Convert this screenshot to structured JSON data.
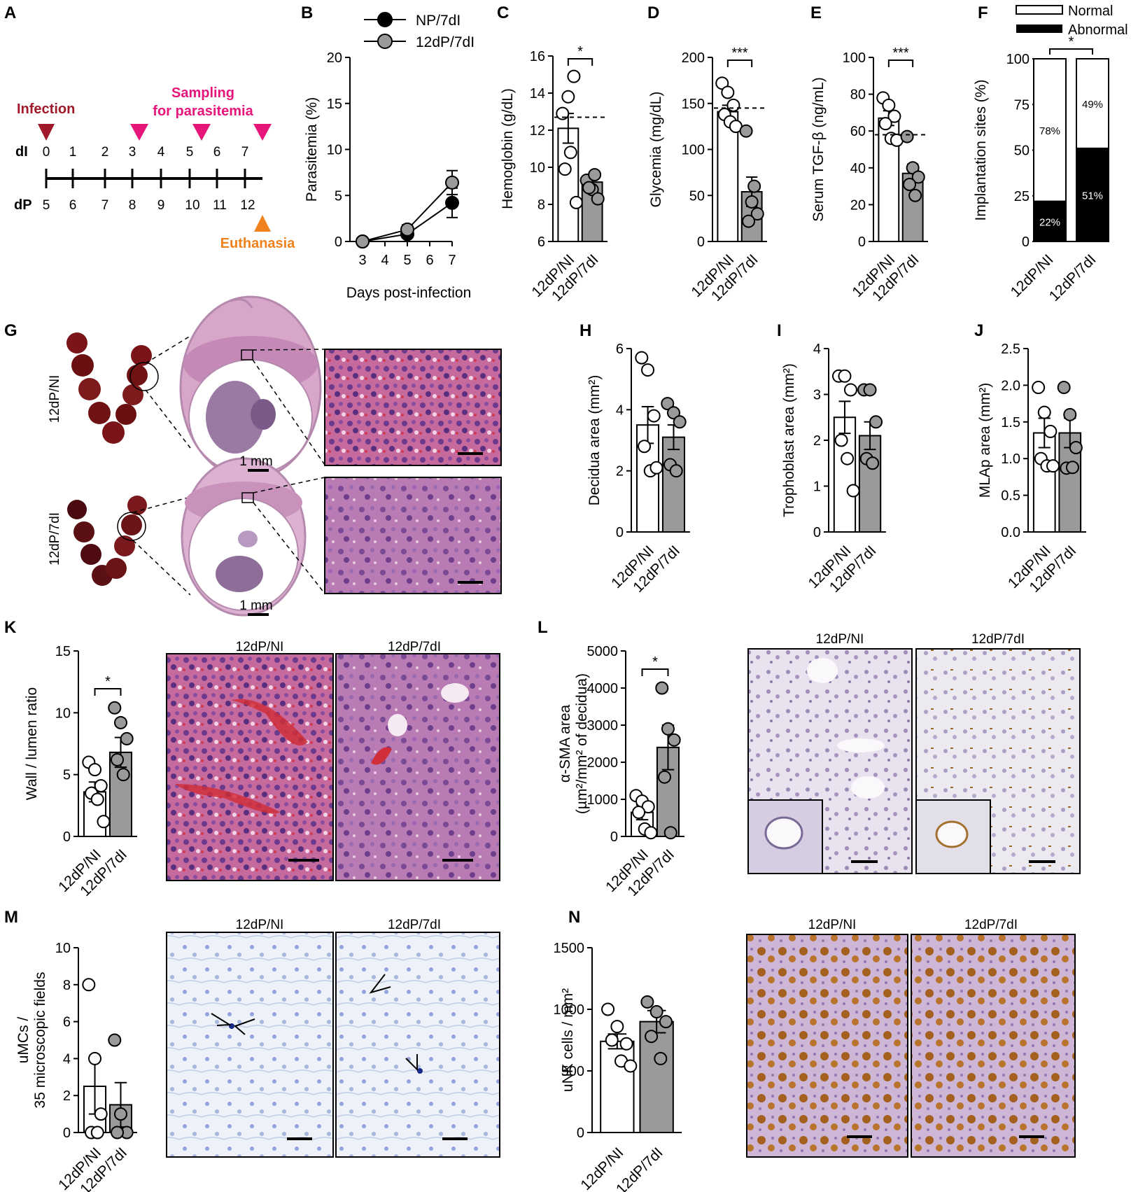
{
  "panel_labels": {
    "A": "A",
    "B": "B",
    "C": "C",
    "D": "D",
    "E": "E",
    "F": "F",
    "G": "G",
    "H": "H",
    "I": "I",
    "J": "J",
    "K": "K",
    "L": "L",
    "M": "M",
    "N": "N"
  },
  "colors": {
    "np": "#000000",
    "infected": "#9a9a9a",
    "bar_open": "#ffffff",
    "bar_gray": "#9a9a9a",
    "timeline_red": "#a0192a",
    "timeline_pink": "#e5157a",
    "timeline_orange": "#f0821e"
  },
  "groups": [
    "12dP/NI",
    "12dP/7dI"
  ],
  "timeline": {
    "infection": "Infection",
    "sampling_l1": "Sampling",
    "sampling_l2": "for parasitemia",
    "euthanasia": "Euthanasia",
    "row_di": "dI",
    "row_dp": "dP",
    "di_ticks": [
      "0",
      "1",
      "2",
      "3",
      "4",
      "5",
      "6",
      "7"
    ],
    "dp_ticks": [
      "5",
      "6",
      "7",
      "8",
      "9",
      "10",
      "11",
      "12"
    ]
  },
  "legend_f": {
    "normal": "Normal",
    "abnormal": "Abnormal"
  },
  "histology": {
    "scalebar_label": "1 mm",
    "col_ni": "12dP/NI",
    "col_7di": "12dP/7dI",
    "row_ni": "12dP/NI",
    "row_7di": "12dP/7dI"
  },
  "chart_data": [
    {
      "id": "B",
      "type": "line",
      "xlabel": "Days post-infection",
      "ylabel": "Parasitemia (%)",
      "x": [
        3,
        5,
        7
      ],
      "xticks": [
        3,
        4,
        5,
        6,
        7
      ],
      "ylim": [
        0,
        20
      ],
      "yticks": [
        0,
        5,
        10,
        15,
        20
      ],
      "series": [
        {
          "name": "NP/7dI",
          "values": [
            0,
            0.8,
            4.2
          ],
          "err": [
            0.2,
            0.4,
            1.6
          ]
        },
        {
          "name": "12dP/7dI",
          "values": [
            0,
            1.3,
            6.4
          ],
          "err": [
            0.2,
            0.5,
            1.3
          ]
        }
      ],
      "legend": "top-left"
    },
    {
      "id": "C",
      "type": "bar",
      "ylabel": "Hemoglobin (g/dL)",
      "ylim": [
        6,
        16
      ],
      "yticks": [
        6,
        8,
        10,
        12,
        14,
        16
      ],
      "categories": [
        "12dP/NI",
        "12dP/7dI"
      ],
      "values": [
        12.1,
        9.2
      ],
      "err": [
        0.8,
        0.4
      ],
      "reference": 12.7,
      "significance": "*",
      "points": [
        [
          12.9,
          13.8,
          14.9,
          9.9,
          10.8,
          8.1
        ],
        [
          9.3,
          8.8,
          8.3,
          8.9,
          9.6
        ]
      ]
    },
    {
      "id": "D",
      "type": "bar",
      "ylabel": "Glycemia (mg/dL)",
      "ylim": [
        0,
        200
      ],
      "yticks": [
        0,
        50,
        100,
        150,
        200
      ],
      "categories": [
        "12dP/NI",
        "12dP/7dI"
      ],
      "values": [
        141,
        54
      ],
      "err": [
        7,
        16
      ],
      "reference": 145,
      "significance": "***",
      "points": [
        [
          172,
          162,
          148,
          138,
          130,
          125
        ],
        [
          120,
          43,
          30,
          22,
          60
        ]
      ]
    },
    {
      "id": "E",
      "type": "bar",
      "ylabel": "Serum TGF-β (ng/mL)",
      "ylim": [
        0,
        100
      ],
      "yticks": [
        0,
        20,
        40,
        60,
        80,
        100
      ],
      "categories": [
        "12dP/NI",
        "12dP/7dI"
      ],
      "values": [
        67,
        37
      ],
      "err": [
        4,
        5
      ],
      "reference": 58,
      "significance": "***",
      "points": [
        [
          78,
          74,
          68,
          64,
          56,
          55
        ],
        [
          57,
          40,
          35,
          31,
          25
        ]
      ]
    },
    {
      "id": "F",
      "type": "bar",
      "stacked": true,
      "ylabel": "Implantation sites (%)",
      "ylim": [
        0,
        100
      ],
      "yticks": [
        0,
        25,
        50,
        75,
        100
      ],
      "categories": [
        "12dP/NI",
        "12dP/7dI"
      ],
      "series": [
        {
          "name": "Abnormal",
          "values": [
            22,
            51
          ],
          "labels": [
            "22%",
            "51%"
          ]
        },
        {
          "name": "Normal",
          "values": [
            78,
            49
          ],
          "labels": [
            "78%",
            "49%"
          ]
        }
      ],
      "significance": "*"
    },
    {
      "id": "H",
      "type": "bar",
      "ylabel": "Decidua area (mm²)",
      "ylim": [
        0,
        6
      ],
      "yticks": [
        0,
        2,
        4,
        6
      ],
      "categories": [
        "12dP/NI",
        "12dP/7dI"
      ],
      "values": [
        3.5,
        3.1
      ],
      "err": [
        0.6,
        0.4
      ],
      "points": [
        [
          5.7,
          5.3,
          3.8,
          2.8,
          2.0,
          2.1
        ],
        [
          4.2,
          3.9,
          3.6,
          2.2,
          2.0
        ]
      ]
    },
    {
      "id": "I",
      "type": "bar",
      "ylabel": "Trophoblast area (mm²)",
      "ylim": [
        0,
        4
      ],
      "yticks": [
        0,
        1,
        2,
        3,
        4
      ],
      "categories": [
        "12dP/NI",
        "12dP/7dI"
      ],
      "values": [
        2.5,
        2.1
      ],
      "err": [
        0.35,
        0.3
      ],
      "points": [
        [
          3.4,
          3.4,
          3.1,
          2.0,
          1.6,
          0.9
        ],
        [
          3.1,
          3.1,
          2.4,
          1.6,
          1.5
        ]
      ]
    },
    {
      "id": "J",
      "type": "bar",
      "ylabel": "MLAp area (mm²)",
      "ylim": [
        0,
        2.5
      ],
      "yticks": [
        "0.0",
        "0.5",
        "1.0",
        "1.5",
        "2.0",
        "2.5"
      ],
      "categories": [
        "12dP/NI",
        "12dP/7dI"
      ],
      "values": [
        1.35,
        1.35
      ],
      "err": [
        0.2,
        0.2
      ],
      "points": [
        [
          1.97,
          1.63,
          1.37,
          1.0,
          0.9,
          0.9
        ],
        [
          1.97,
          1.6,
          1.15,
          0.87,
          0.88
        ]
      ]
    },
    {
      "id": "K",
      "type": "bar",
      "ylabel": "Wall / lumen ratio",
      "ylim": [
        0,
        15
      ],
      "yticks": [
        0,
        5,
        10,
        15
      ],
      "categories": [
        "12dP/NI",
        "12dP/7dI"
      ],
      "values": [
        3.6,
        6.8
      ],
      "err": [
        0.8,
        1.2
      ],
      "significance": "*",
      "points": [
        [
          6.0,
          5.4,
          4.1,
          3.5,
          3.0,
          1.2
        ],
        [
          10.4,
          9.2,
          7.9,
          6.2,
          5.0
        ]
      ]
    },
    {
      "id": "L",
      "type": "bar",
      "ylabel": "α-SMA area",
      "ylabel2": "(µm²/mm² of decidua)",
      "ylim": [
        0,
        5000
      ],
      "yticks": [
        0,
        1000,
        2000,
        3000,
        4000,
        5000
      ],
      "categories": [
        "12dP/NI",
        "12dP/7dI"
      ],
      "values": [
        650,
        2400
      ],
      "err": [
        200,
        600
      ],
      "significance": "*",
      "points": [
        [
          1100,
          950,
          800,
          650,
          200,
          100
        ],
        [
          4000,
          2900,
          2600,
          1600,
          100
        ]
      ]
    },
    {
      "id": "M",
      "type": "bar",
      "ylabel": "uMCs /",
      "ylabel2": "35 microscopic fields",
      "ylim": [
        0,
        10
      ],
      "yticks": [
        0,
        2,
        4,
        6,
        8,
        10
      ],
      "categories": [
        "12dP/NI",
        "12dP/7dI"
      ],
      "values": [
        2.5,
        1.5
      ],
      "err": [
        1.5,
        1.2
      ],
      "points": [
        [
          8,
          4,
          1,
          0,
          0
        ],
        [
          5,
          1,
          0,
          0
        ]
      ]
    },
    {
      "id": "N",
      "type": "bar",
      "ylabel": "uNK cells / mm²",
      "ylim": [
        0,
        1500
      ],
      "yticks": [
        0,
        500,
        1000,
        1500
      ],
      "categories": [
        "12dP/NI",
        "12dP/7dI"
      ],
      "values": [
        740,
        900
      ],
      "err": [
        60,
        90
      ],
      "points": [
        [
          1000,
          860,
          720,
          750,
          580,
          540
        ],
        [
          1060,
          980,
          900,
          780,
          600
        ]
      ]
    }
  ]
}
